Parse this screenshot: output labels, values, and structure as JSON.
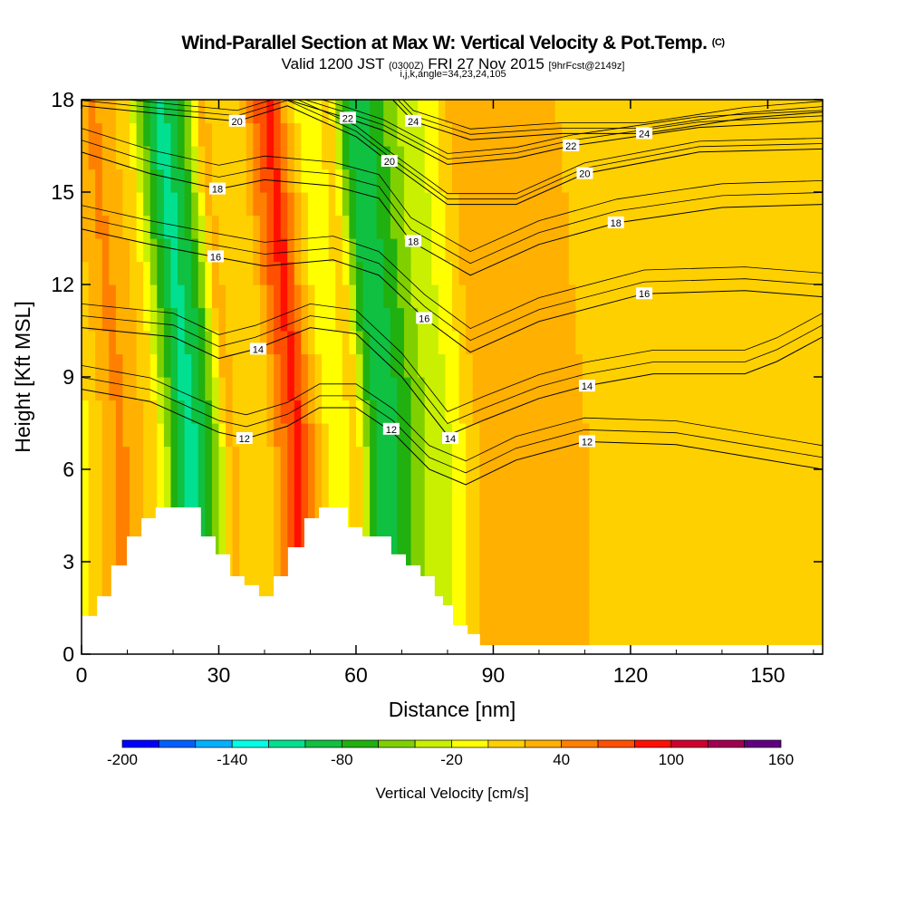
{
  "chart_data": {
    "type": "heatmap",
    "title": "Wind-Parallel Section at Max W: Vertical Velocity & Pot.Temp.",
    "title_mark": "(C)",
    "subtitle_main": "Valid 1200 JST",
    "subtitle_utc": "(0300Z)",
    "subtitle_date": "FRI 27 Nov 2015",
    "subtitle_fcst": "[9hrFcst@2149z]",
    "subtitle2": "i,j,k,angle=34,23,24,105",
    "xlabel": "Distance [nm]",
    "ylabel": "Height [Kft MSL]",
    "xlim": [
      0,
      162
    ],
    "ylim": [
      0,
      18
    ],
    "xticks": [
      "0",
      "30",
      "60",
      "90",
      "120",
      "150"
    ],
    "xtick_values": [
      0,
      30,
      60,
      90,
      120,
      150
    ],
    "yticks": [
      "0",
      "3",
      "6",
      "9",
      "12",
      "15",
      "18"
    ],
    "ytick_values": [
      0,
      3,
      6,
      9,
      12,
      15,
      18
    ],
    "colorbar": {
      "label": "Vertical Velocity [cm/s]",
      "levels": [
        -200,
        -180,
        -160,
        -140,
        -120,
        -100,
        -80,
        -60,
        -40,
        -20,
        0,
        20,
        40,
        60,
        80,
        100,
        120,
        140,
        160
      ],
      "tick_labels": [
        "-200",
        "-140",
        "-80",
        "-20",
        "40",
        "100",
        "160"
      ],
      "tick_values": [
        -200,
        -140,
        -80,
        -20,
        40,
        100,
        160
      ],
      "colors": [
        "#0000ff",
        "#0060ff",
        "#00b0ff",
        "#00ffe8",
        "#00e090",
        "#10c040",
        "#20b010",
        "#80d000",
        "#c8f000",
        "#ffff00",
        "#ffd000",
        "#ffb000",
        "#ff8000",
        "#ff5000",
        "#ff1000",
        "#d00030",
        "#a00050",
        "#600080"
      ]
    },
    "w_profile_distance": [
      0,
      4,
      8,
      12,
      16,
      20,
      23,
      26,
      29,
      32,
      36,
      40,
      44,
      47,
      50,
      53,
      56,
      60,
      63,
      66,
      69,
      72,
      75,
      78,
      82,
      86,
      90,
      100,
      110,
      120,
      130,
      140,
      150,
      162
    ],
    "w_profile_values": [
      -10,
      20,
      45,
      30,
      0,
      -70,
      -110,
      -90,
      -50,
      30,
      0,
      10,
      60,
      90,
      40,
      0,
      -10,
      10,
      -70,
      -100,
      -80,
      -60,
      -40,
      -30,
      -10,
      20,
      30,
      30,
      20,
      10,
      20,
      10,
      0,
      0
    ],
    "terrain": [
      [
        0,
        1.24
      ],
      [
        3.4,
        1.88
      ],
      [
        6.5,
        2.88
      ],
      [
        9.9,
        3.82
      ],
      [
        13.1,
        4.41
      ],
      [
        16.2,
        4.76
      ],
      [
        26.1,
        3.82
      ],
      [
        29.3,
        3.24
      ],
      [
        32.5,
        2.53
      ],
      [
        35.6,
        2.24
      ],
      [
        38.8,
        1.88
      ],
      [
        42,
        2.53
      ],
      [
        45.1,
        3.47
      ],
      [
        48.7,
        4.41
      ],
      [
        51.9,
        4.76
      ],
      [
        58.2,
        4.12
      ],
      [
        61.4,
        3.82
      ],
      [
        67.7,
        3.24
      ],
      [
        70.9,
        2.88
      ],
      [
        74.1,
        2.53
      ],
      [
        77.2,
        1.88
      ],
      [
        79,
        1.59
      ],
      [
        81.2,
        0.94
      ],
      [
        84.4,
        0.65
      ],
      [
        87.1,
        0.29
      ],
      [
        162,
        0.29
      ]
    ],
    "theta_contours": [
      {
        "label": "12",
        "points": [
          [
            0,
            8.6
          ],
          [
            15,
            8.2
          ],
          [
            30,
            7.2
          ],
          [
            36,
            7.0
          ],
          [
            45,
            7.4
          ],
          [
            52,
            8.0
          ],
          [
            60,
            8.0
          ],
          [
            68,
            7.2
          ],
          [
            76,
            6.0
          ],
          [
            84,
            5.5
          ],
          [
            95,
            6.3
          ],
          [
            110,
            6.9
          ],
          [
            130,
            6.8
          ],
          [
            150,
            6.3
          ],
          [
            162,
            6.0
          ]
        ],
        "label_at": [
          [
            35.6,
            7.0
          ],
          [
            67.7,
            7.3
          ],
          [
            110.5,
            6.9
          ]
        ]
      },
      {
        "label": "14",
        "points": [
          [
            0,
            10.6
          ],
          [
            20,
            10.3
          ],
          [
            30,
            9.6
          ],
          [
            38,
            9.9
          ],
          [
            50,
            10.6
          ],
          [
            60,
            10.4
          ],
          [
            70,
            9.0
          ],
          [
            80,
            7.1
          ],
          [
            88,
            7.6
          ],
          [
            100,
            8.3
          ],
          [
            110,
            8.7
          ],
          [
            125,
            9.1
          ],
          [
            145,
            9.1
          ],
          [
            152,
            9.5
          ],
          [
            162,
            10.3
          ]
        ],
        "label_at": [
          [
            38.6,
            9.9
          ],
          [
            80.6,
            7.0
          ],
          [
            110.5,
            8.7
          ]
        ]
      },
      {
        "label": "16",
        "points": [
          [
            0,
            13.8
          ],
          [
            15,
            13.3
          ],
          [
            29,
            12.9
          ],
          [
            40,
            12.6
          ],
          [
            55,
            12.8
          ],
          [
            65,
            12.3
          ],
          [
            75,
            10.9
          ],
          [
            85,
            9.8
          ],
          [
            100,
            10.8
          ],
          [
            123,
            11.7
          ],
          [
            145,
            11.8
          ],
          [
            162,
            11.6
          ]
        ],
        "label_at": [
          [
            29.3,
            12.9
          ],
          [
            74.9,
            10.9
          ],
          [
            123,
            11.7
          ]
        ]
      },
      {
        "label": "18",
        "points": [
          [
            0,
            16.3
          ],
          [
            15,
            15.6
          ],
          [
            30,
            15.1
          ],
          [
            40,
            15.4
          ],
          [
            55,
            15.2
          ],
          [
            65,
            14.8
          ],
          [
            72,
            13.4
          ],
          [
            85,
            12.3
          ],
          [
            100,
            13.3
          ],
          [
            117,
            14.0
          ],
          [
            140,
            14.5
          ],
          [
            162,
            14.6
          ]
        ],
        "label_at": [
          [
            29.7,
            15.1
          ],
          [
            72.5,
            13.4
          ],
          [
            116.8,
            14.0
          ]
        ]
      },
      {
        "label": "20",
        "points": [
          [
            0,
            17.8
          ],
          [
            20,
            17.5
          ],
          [
            34,
            17.3
          ],
          [
            45,
            17.8
          ],
          [
            60,
            16.8
          ],
          [
            67,
            16.0
          ],
          [
            80,
            14.6
          ],
          [
            95,
            14.6
          ],
          [
            110,
            15.6
          ],
          [
            135,
            16.3
          ],
          [
            162,
            16.4
          ]
        ],
        "label_at": [
          [
            34,
            17.3
          ],
          [
            67.3,
            16.0
          ],
          [
            110,
            15.6
          ]
        ]
      },
      {
        "label": "22",
        "points": [
          [
            45,
            18
          ],
          [
            58,
            17.4
          ],
          [
            66,
            17.0
          ],
          [
            80,
            15.9
          ],
          [
            95,
            16.1
          ],
          [
            107,
            16.5
          ],
          [
            135,
            17.1
          ],
          [
            162,
            17.3
          ]
        ],
        "label_at": [
          [
            58.2,
            17.4
          ],
          [
            107,
            16.5
          ]
        ]
      },
      {
        "label": "24",
        "points": [
          [
            68,
            18
          ],
          [
            72.5,
            17.3
          ],
          [
            85,
            16.7
          ],
          [
            105,
            16.9
          ],
          [
            123,
            16.9
          ],
          [
            145,
            17.4
          ],
          [
            162,
            17.6
          ]
        ],
        "label_at": [
          [
            72.5,
            17.3
          ],
          [
            123,
            16.9
          ]
        ]
      }
    ]
  }
}
